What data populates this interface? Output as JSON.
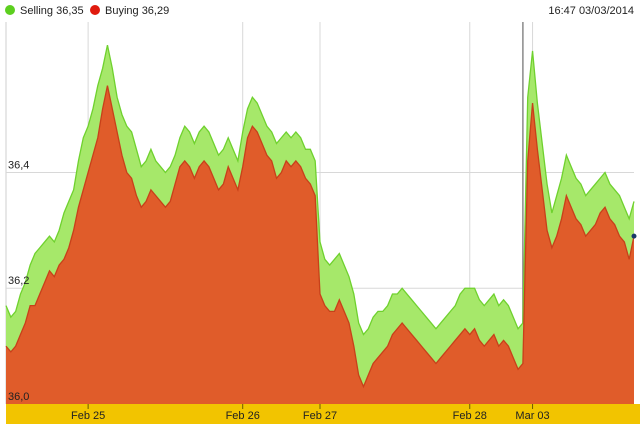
{
  "header": {
    "legend": [
      {
        "label": "Selling 36,35",
        "color": "#5ccf1f"
      },
      {
        "label": "Buying 36,29",
        "color": "#e01a0e"
      }
    ],
    "timestamp": "16:47 03/03/2014"
  },
  "chart_data": {
    "type": "area",
    "title": "",
    "xlabel": "",
    "ylabel": "",
    "ylim": [
      36.0,
      36.66
    ],
    "y_ticks": [
      {
        "value": 36.0,
        "label": "36,0"
      },
      {
        "value": 36.2,
        "label": "36,2"
      },
      {
        "value": 36.4,
        "label": "36,4"
      }
    ],
    "x_ticks": [
      {
        "label": "Feb 25",
        "index": 17
      },
      {
        "label": "Feb 26",
        "index": 49
      },
      {
        "label": "Feb 27",
        "index": 65
      },
      {
        "label": "Feb 28",
        "index": 96
      },
      {
        "label": "Mar 03",
        "index": 109
      }
    ],
    "x_tick_separator_at_index": 107,
    "grid": true,
    "legend_position": "top-left",
    "colors": {
      "selling_fill": "#a6e86a",
      "selling_line": "#6fd12e",
      "buying_fill": "#e05c2a",
      "buying_line": "#c8401a",
      "axis_band": "#f2c400",
      "grid": "#d8d8d8"
    },
    "series": [
      {
        "name": "Selling",
        "values": [
          36.17,
          36.15,
          36.16,
          36.19,
          36.21,
          36.24,
          36.26,
          36.27,
          36.28,
          36.29,
          36.28,
          36.3,
          36.33,
          36.35,
          36.37,
          36.42,
          36.46,
          36.48,
          36.51,
          36.55,
          36.58,
          36.62,
          36.58,
          36.53,
          36.5,
          36.48,
          36.47,
          36.44,
          36.41,
          36.42,
          36.44,
          36.42,
          36.41,
          36.4,
          36.41,
          36.43,
          36.46,
          36.48,
          36.47,
          36.45,
          36.47,
          36.48,
          36.47,
          36.45,
          36.43,
          36.44,
          36.46,
          36.44,
          36.42,
          36.47,
          36.51,
          36.53,
          36.52,
          36.5,
          36.48,
          36.47,
          36.45,
          36.46,
          36.47,
          36.46,
          36.47,
          36.46,
          36.44,
          36.44,
          36.42,
          36.28,
          36.25,
          36.24,
          36.25,
          36.26,
          36.24,
          36.22,
          36.19,
          36.14,
          36.12,
          36.13,
          36.15,
          36.16,
          36.16,
          36.17,
          36.19,
          36.19,
          36.2,
          36.19,
          36.18,
          36.17,
          36.16,
          36.15,
          36.14,
          36.13,
          36.14,
          36.15,
          36.16,
          36.17,
          36.19,
          36.2,
          36.2,
          36.2,
          36.18,
          36.17,
          36.18,
          36.19,
          36.17,
          36.18,
          36.17,
          36.15,
          36.13,
          36.14,
          36.53,
          36.61,
          36.52,
          36.45,
          36.38,
          36.33,
          36.36,
          36.39,
          36.43,
          36.41,
          36.39,
          36.38,
          36.36,
          36.37,
          36.38,
          36.39,
          36.4,
          36.38,
          36.37,
          36.36,
          36.34,
          36.32,
          36.35
        ]
      },
      {
        "name": "Buying",
        "values": [
          36.1,
          36.09,
          36.1,
          36.12,
          36.14,
          36.17,
          36.17,
          36.19,
          36.21,
          36.23,
          36.22,
          36.24,
          36.25,
          36.27,
          36.3,
          36.34,
          36.37,
          36.4,
          36.43,
          36.46,
          36.51,
          36.55,
          36.51,
          36.47,
          36.43,
          36.4,
          36.39,
          36.36,
          36.34,
          36.35,
          36.37,
          36.36,
          36.35,
          36.34,
          36.35,
          36.38,
          36.41,
          36.42,
          36.41,
          36.39,
          36.41,
          36.42,
          36.41,
          36.39,
          36.37,
          36.38,
          36.41,
          36.39,
          36.37,
          36.41,
          36.46,
          36.48,
          36.47,
          36.45,
          36.43,
          36.42,
          36.39,
          36.4,
          36.42,
          36.41,
          36.42,
          36.41,
          36.39,
          36.38,
          36.36,
          36.19,
          36.17,
          36.16,
          36.16,
          36.18,
          36.16,
          36.14,
          36.1,
          36.05,
          36.03,
          36.05,
          36.07,
          36.08,
          36.09,
          36.1,
          36.12,
          36.13,
          36.14,
          36.13,
          36.12,
          36.11,
          36.1,
          36.09,
          36.08,
          36.07,
          36.08,
          36.09,
          36.1,
          36.11,
          36.12,
          36.13,
          36.12,
          36.13,
          36.11,
          36.1,
          36.11,
          36.12,
          36.1,
          36.11,
          36.1,
          36.08,
          36.06,
          36.07,
          36.42,
          36.52,
          36.44,
          36.37,
          36.3,
          36.27,
          36.29,
          36.32,
          36.36,
          36.34,
          36.32,
          36.31,
          36.29,
          36.3,
          36.31,
          36.33,
          36.34,
          36.32,
          36.31,
          36.29,
          36.28,
          36.25,
          36.29
        ]
      }
    ]
  }
}
